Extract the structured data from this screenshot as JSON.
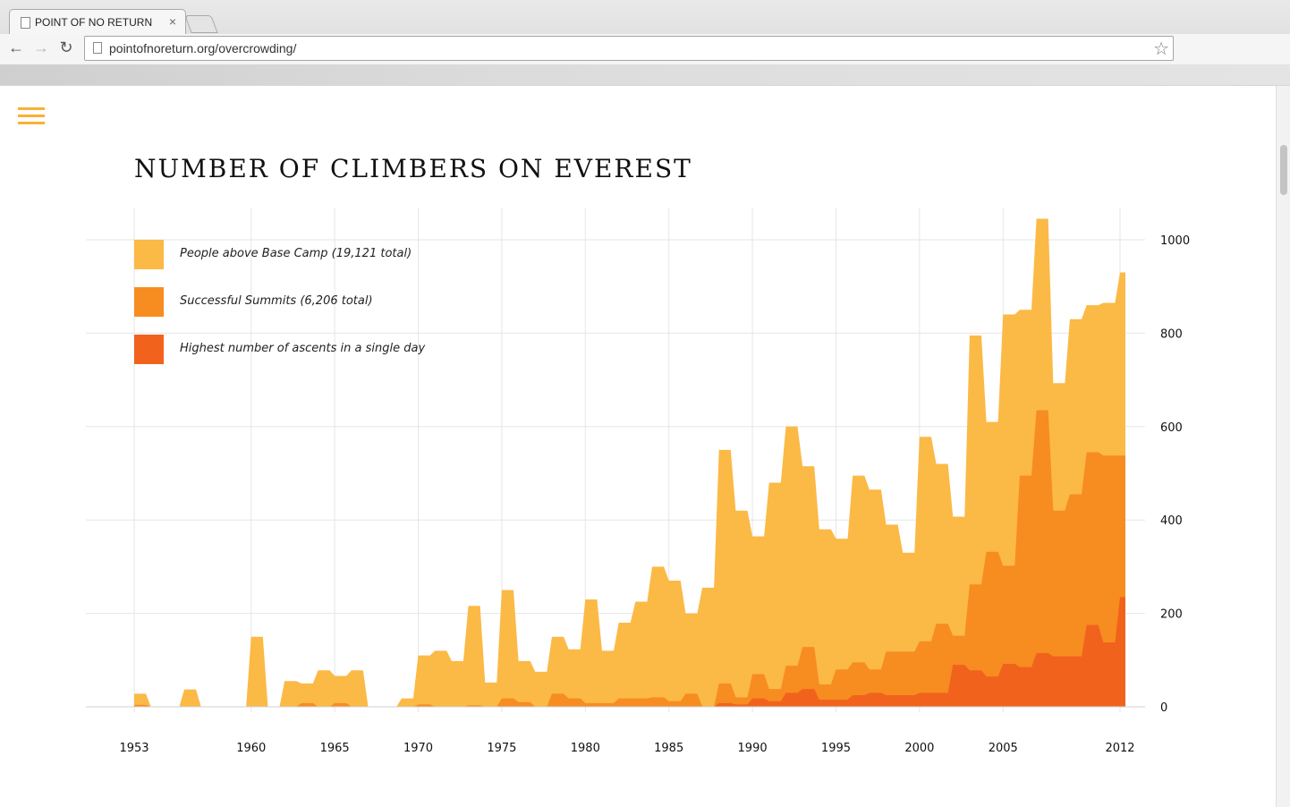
{
  "browser": {
    "tab_title": "POINT OF NO RETURN",
    "tab_close": "×",
    "back_icon": "←",
    "forward_icon": "→",
    "reload_icon": "↻",
    "url": "pointofnoreturn.org/overcrowding/",
    "star_icon": "☆"
  },
  "colors": {
    "base_camp": "#fbb946",
    "summits": "#f78c21",
    "single_day": "#f1631c",
    "accent": "#fbb034"
  },
  "page": {
    "title": "NUMBER OF CLIMBERS ON EVEREST"
  },
  "legend": [
    {
      "label": "People above Base Camp (19,121 total)",
      "color": "#fbb946"
    },
    {
      "label": "Successful Summits (6,206 total)",
      "color": "#f78c21"
    },
    {
      "label": "Highest number of ascents in a single day",
      "color": "#f1631c"
    }
  ],
  "chart_data": {
    "type": "area",
    "title": "NUMBER OF CLIMBERS ON EVEREST",
    "x_tick_labels": [
      "1953",
      "1960",
      "1965",
      "1970",
      "1975",
      "1980",
      "1985",
      "1990",
      "1995",
      "2000",
      "2005",
      "2012"
    ],
    "x_ticks": [
      1953,
      1960,
      1965,
      1970,
      1975,
      1980,
      1985,
      1990,
      1995,
      2000,
      2005,
      2012
    ],
    "y_ticks": [
      0,
      200,
      400,
      600,
      800,
      1000
    ],
    "y_tick_labels": [
      "0",
      "200",
      "400",
      "600",
      "800",
      "1000"
    ],
    "xlim": [
      1953,
      2012
    ],
    "ylim": [
      0,
      1000
    ],
    "y_axis_side": "right",
    "grid": true,
    "legend_position": "top-left",
    "x": [
      1953,
      1954,
      1955,
      1956,
      1957,
      1958,
      1959,
      1960,
      1961,
      1962,
      1963,
      1964,
      1965,
      1966,
      1967,
      1968,
      1969,
      1970,
      1971,
      1972,
      1973,
      1974,
      1975,
      1976,
      1977,
      1978,
      1979,
      1980,
      1981,
      1982,
      1983,
      1984,
      1985,
      1986,
      1987,
      1988,
      1989,
      1990,
      1991,
      1992,
      1993,
      1994,
      1995,
      1996,
      1997,
      1998,
      1999,
      2000,
      2001,
      2002,
      2003,
      2004,
      2005,
      2006,
      2007,
      2008,
      2009,
      2010,
      2011,
      2012
    ],
    "series": [
      {
        "name": "People above Base Camp (19,121 total)",
        "values": [
          28,
          0,
          0,
          37,
          0,
          0,
          0,
          150,
          0,
          55,
          50,
          78,
          66,
          78,
          0,
          0,
          18,
          110,
          120,
          98,
          216,
          52,
          250,
          98,
          75,
          150,
          123,
          230,
          120,
          180,
          225,
          300,
          270,
          200,
          255,
          550,
          420,
          365,
          480,
          600,
          515,
          380,
          360,
          495,
          465,
          390,
          330,
          578,
          520,
          407,
          795,
          610,
          840,
          850,
          1045,
          693,
          830,
          860,
          865,
          930
        ]
      },
      {
        "name": "Successful Summits (6,206 total)",
        "values": [
          4,
          0,
          0,
          0,
          0,
          0,
          0,
          0,
          0,
          0,
          8,
          0,
          8,
          0,
          0,
          0,
          0,
          5,
          0,
          0,
          3,
          0,
          18,
          10,
          0,
          28,
          18,
          8,
          8,
          18,
          18,
          20,
          12,
          28,
          0,
          50,
          20,
          70,
          38,
          88,
          128,
          48,
          80,
          95,
          80,
          118,
          118,
          140,
          178,
          152,
          262,
          332,
          302,
          495,
          635,
          420,
          455,
          545,
          538,
          538
        ]
      },
      {
        "name": "Highest number of ascents in a single day",
        "values": [
          0,
          0,
          0,
          0,
          0,
          0,
          0,
          0,
          0,
          0,
          0,
          0,
          0,
          0,
          0,
          0,
          0,
          0,
          0,
          0,
          0,
          0,
          0,
          0,
          0,
          0,
          0,
          0,
          0,
          0,
          0,
          0,
          0,
          0,
          0,
          8,
          5,
          18,
          12,
          30,
          38,
          15,
          15,
          25,
          30,
          25,
          25,
          30,
          30,
          90,
          78,
          65,
          92,
          85,
          115,
          108,
          108,
          175,
          138,
          235
        ]
      }
    ]
  }
}
